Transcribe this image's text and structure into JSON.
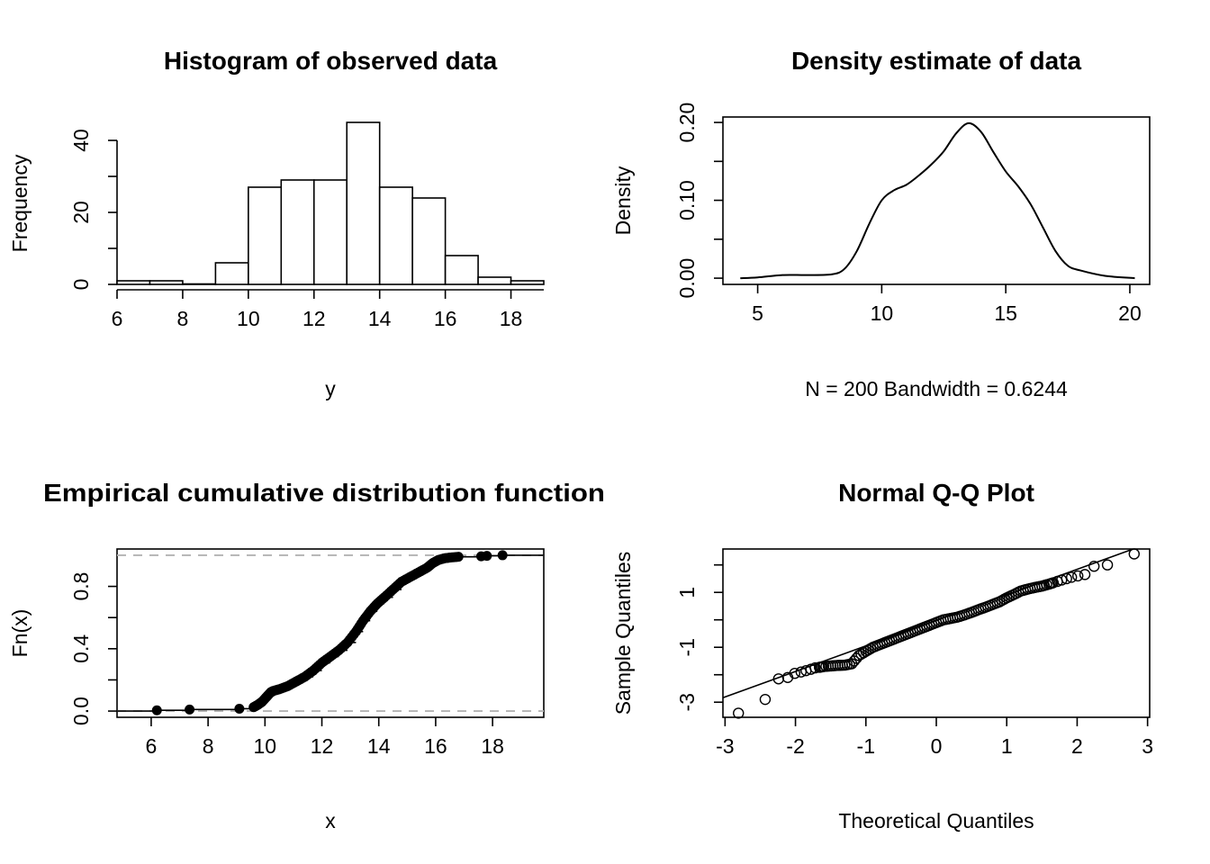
{
  "chart_data": [
    {
      "type": "bar",
      "title": "Histogram of observed data",
      "xlabel": "y",
      "ylabel": "Frequency",
      "bins": [
        {
          "from": 6,
          "to": 7,
          "count": 1
        },
        {
          "from": 7,
          "to": 8,
          "count": 1
        },
        {
          "from": 8,
          "to": 9,
          "count": 0
        },
        {
          "from": 9,
          "to": 10,
          "count": 6
        },
        {
          "from": 10,
          "to": 11,
          "count": 27
        },
        {
          "from": 11,
          "to": 12,
          "count": 29
        },
        {
          "from": 12,
          "to": 13,
          "count": 29
        },
        {
          "from": 13,
          "to": 14,
          "count": 45
        },
        {
          "from": 14,
          "to": 15,
          "count": 27
        },
        {
          "from": 15,
          "to": 16,
          "count": 24
        },
        {
          "from": 16,
          "to": 17,
          "count": 8
        },
        {
          "from": 17,
          "to": 18,
          "count": 2
        },
        {
          "from": 18,
          "to": 19,
          "count": 1
        }
      ],
      "xticks": [
        "6",
        "8",
        "10",
        "12",
        "14",
        "16",
        "18"
      ],
      "yticks": [
        "0",
        "20",
        "40"
      ],
      "xlim": [
        6,
        19
      ],
      "ylim": [
        0,
        45
      ]
    },
    {
      "type": "line",
      "title": "Density estimate of data",
      "xlabel": "N = 200   Bandwidth = 0.6244",
      "ylabel": "Density",
      "x": [
        4.3,
        5,
        6,
        7,
        8,
        8.5,
        9,
        9.5,
        10,
        10.5,
        11,
        11.5,
        12,
        12.5,
        13,
        13.5,
        14,
        14.5,
        15,
        15.5,
        16,
        16.5,
        17,
        17.5,
        18,
        19,
        20.2
      ],
      "y": [
        0.0,
        0.001,
        0.004,
        0.004,
        0.005,
        0.012,
        0.035,
        0.07,
        0.1,
        0.113,
        0.12,
        0.132,
        0.146,
        0.163,
        0.186,
        0.199,
        0.188,
        0.162,
        0.137,
        0.118,
        0.095,
        0.065,
        0.035,
        0.016,
        0.01,
        0.003,
        0.0
      ],
      "xticks": [
        "5",
        "10",
        "15",
        "20"
      ],
      "yticks": [
        "0.00",
        "0.10",
        "0.20"
      ],
      "xlim": [
        3.6,
        20.8
      ],
      "ylim": [
        -0.008,
        0.207
      ]
    },
    {
      "type": "scatter",
      "title": "Empirical cumulative distribution function",
      "xlabel": "x",
      "ylabel": "Fn(x)",
      "x": [
        6.2,
        7.35,
        9.1,
        9.6,
        9.75,
        9.9,
        10.05,
        10.2,
        10.3,
        10.5,
        10.8,
        11.1,
        11.4,
        11.7,
        12.0,
        12.3,
        12.6,
        12.9,
        13.2,
        13.45,
        13.7,
        13.95,
        14.2,
        14.5,
        14.8,
        15.1,
        15.4,
        15.7,
        15.9,
        16.1,
        16.3,
        16.5,
        16.8,
        17.6,
        17.8,
        18.35
      ],
      "y": [
        0.005,
        0.01,
        0.015,
        0.025,
        0.04,
        0.06,
        0.09,
        0.12,
        0.13,
        0.14,
        0.16,
        0.19,
        0.22,
        0.26,
        0.31,
        0.35,
        0.39,
        0.44,
        0.51,
        0.58,
        0.64,
        0.69,
        0.73,
        0.78,
        0.83,
        0.86,
        0.89,
        0.92,
        0.95,
        0.97,
        0.98,
        0.985,
        0.99,
        0.993,
        0.996,
        1.0
      ],
      "xticks": [
        "6",
        "8",
        "10",
        "12",
        "14",
        "16",
        "18"
      ],
      "yticks": [
        "0.0",
        "0.4",
        "0.8"
      ],
      "xlim": [
        4.8,
        19.8
      ],
      "ylim": [
        -0.04,
        1.04
      ],
      "hlines": [
        0,
        1
      ]
    },
    {
      "type": "scatter",
      "title": "Normal Q-Q Plot",
      "xlabel": "Theoretical Quantiles",
      "ylabel": "Sample Quantiles",
      "x": [
        -2.81,
        -2.43,
        -2.24,
        -2.11,
        -2.01,
        -1.92,
        -1.85,
        -1.78,
        -1.72,
        -1.66,
        -1.6,
        -1.5,
        -1.4,
        -1.3,
        -1.2,
        -1.1,
        -1.0,
        -0.9,
        -0.8,
        -0.7,
        -0.6,
        -0.5,
        -0.4,
        -0.3,
        -0.2,
        -0.1,
        0.0,
        0.1,
        0.2,
        0.3,
        0.4,
        0.5,
        0.6,
        0.7,
        0.8,
        0.9,
        1.0,
        1.1,
        1.2,
        1.3,
        1.4,
        1.5,
        1.6,
        1.66,
        1.72,
        1.78,
        1.85,
        1.92,
        2.01,
        2.11,
        2.24,
        2.43,
        2.81
      ],
      "y": [
        -3.4,
        -2.9,
        -2.15,
        -2.1,
        -1.95,
        -1.9,
        -1.85,
        -1.8,
        -1.75,
        -1.73,
        -1.7,
        -1.68,
        -1.66,
        -1.65,
        -1.6,
        -1.3,
        -1.15,
        -1.0,
        -0.9,
        -0.8,
        -0.7,
        -0.6,
        -0.5,
        -0.4,
        -0.3,
        -0.2,
        -0.1,
        0.0,
        0.05,
        0.1,
        0.18,
        0.27,
        0.37,
        0.46,
        0.56,
        0.66,
        0.8,
        0.92,
        1.05,
        1.12,
        1.18,
        1.23,
        1.3,
        1.35,
        1.4,
        1.45,
        1.5,
        1.55,
        1.6,
        1.65,
        1.95,
        2.0,
        2.4
      ],
      "line": {
        "intercept": -0.02,
        "slope": 0.93
      },
      "xticks": [
        "-3",
        "-2",
        "-1",
        "0",
        "1",
        "2",
        "3"
      ],
      "yticks": [
        "-3",
        "-1",
        "1"
      ],
      "xlim": [
        -3.03,
        3.03
      ],
      "ylim": [
        -3.55,
        2.58
      ]
    }
  ],
  "colors": {
    "axis": "#000000",
    "reference_line": "#b3b3b3",
    "background": "#ffffff"
  }
}
